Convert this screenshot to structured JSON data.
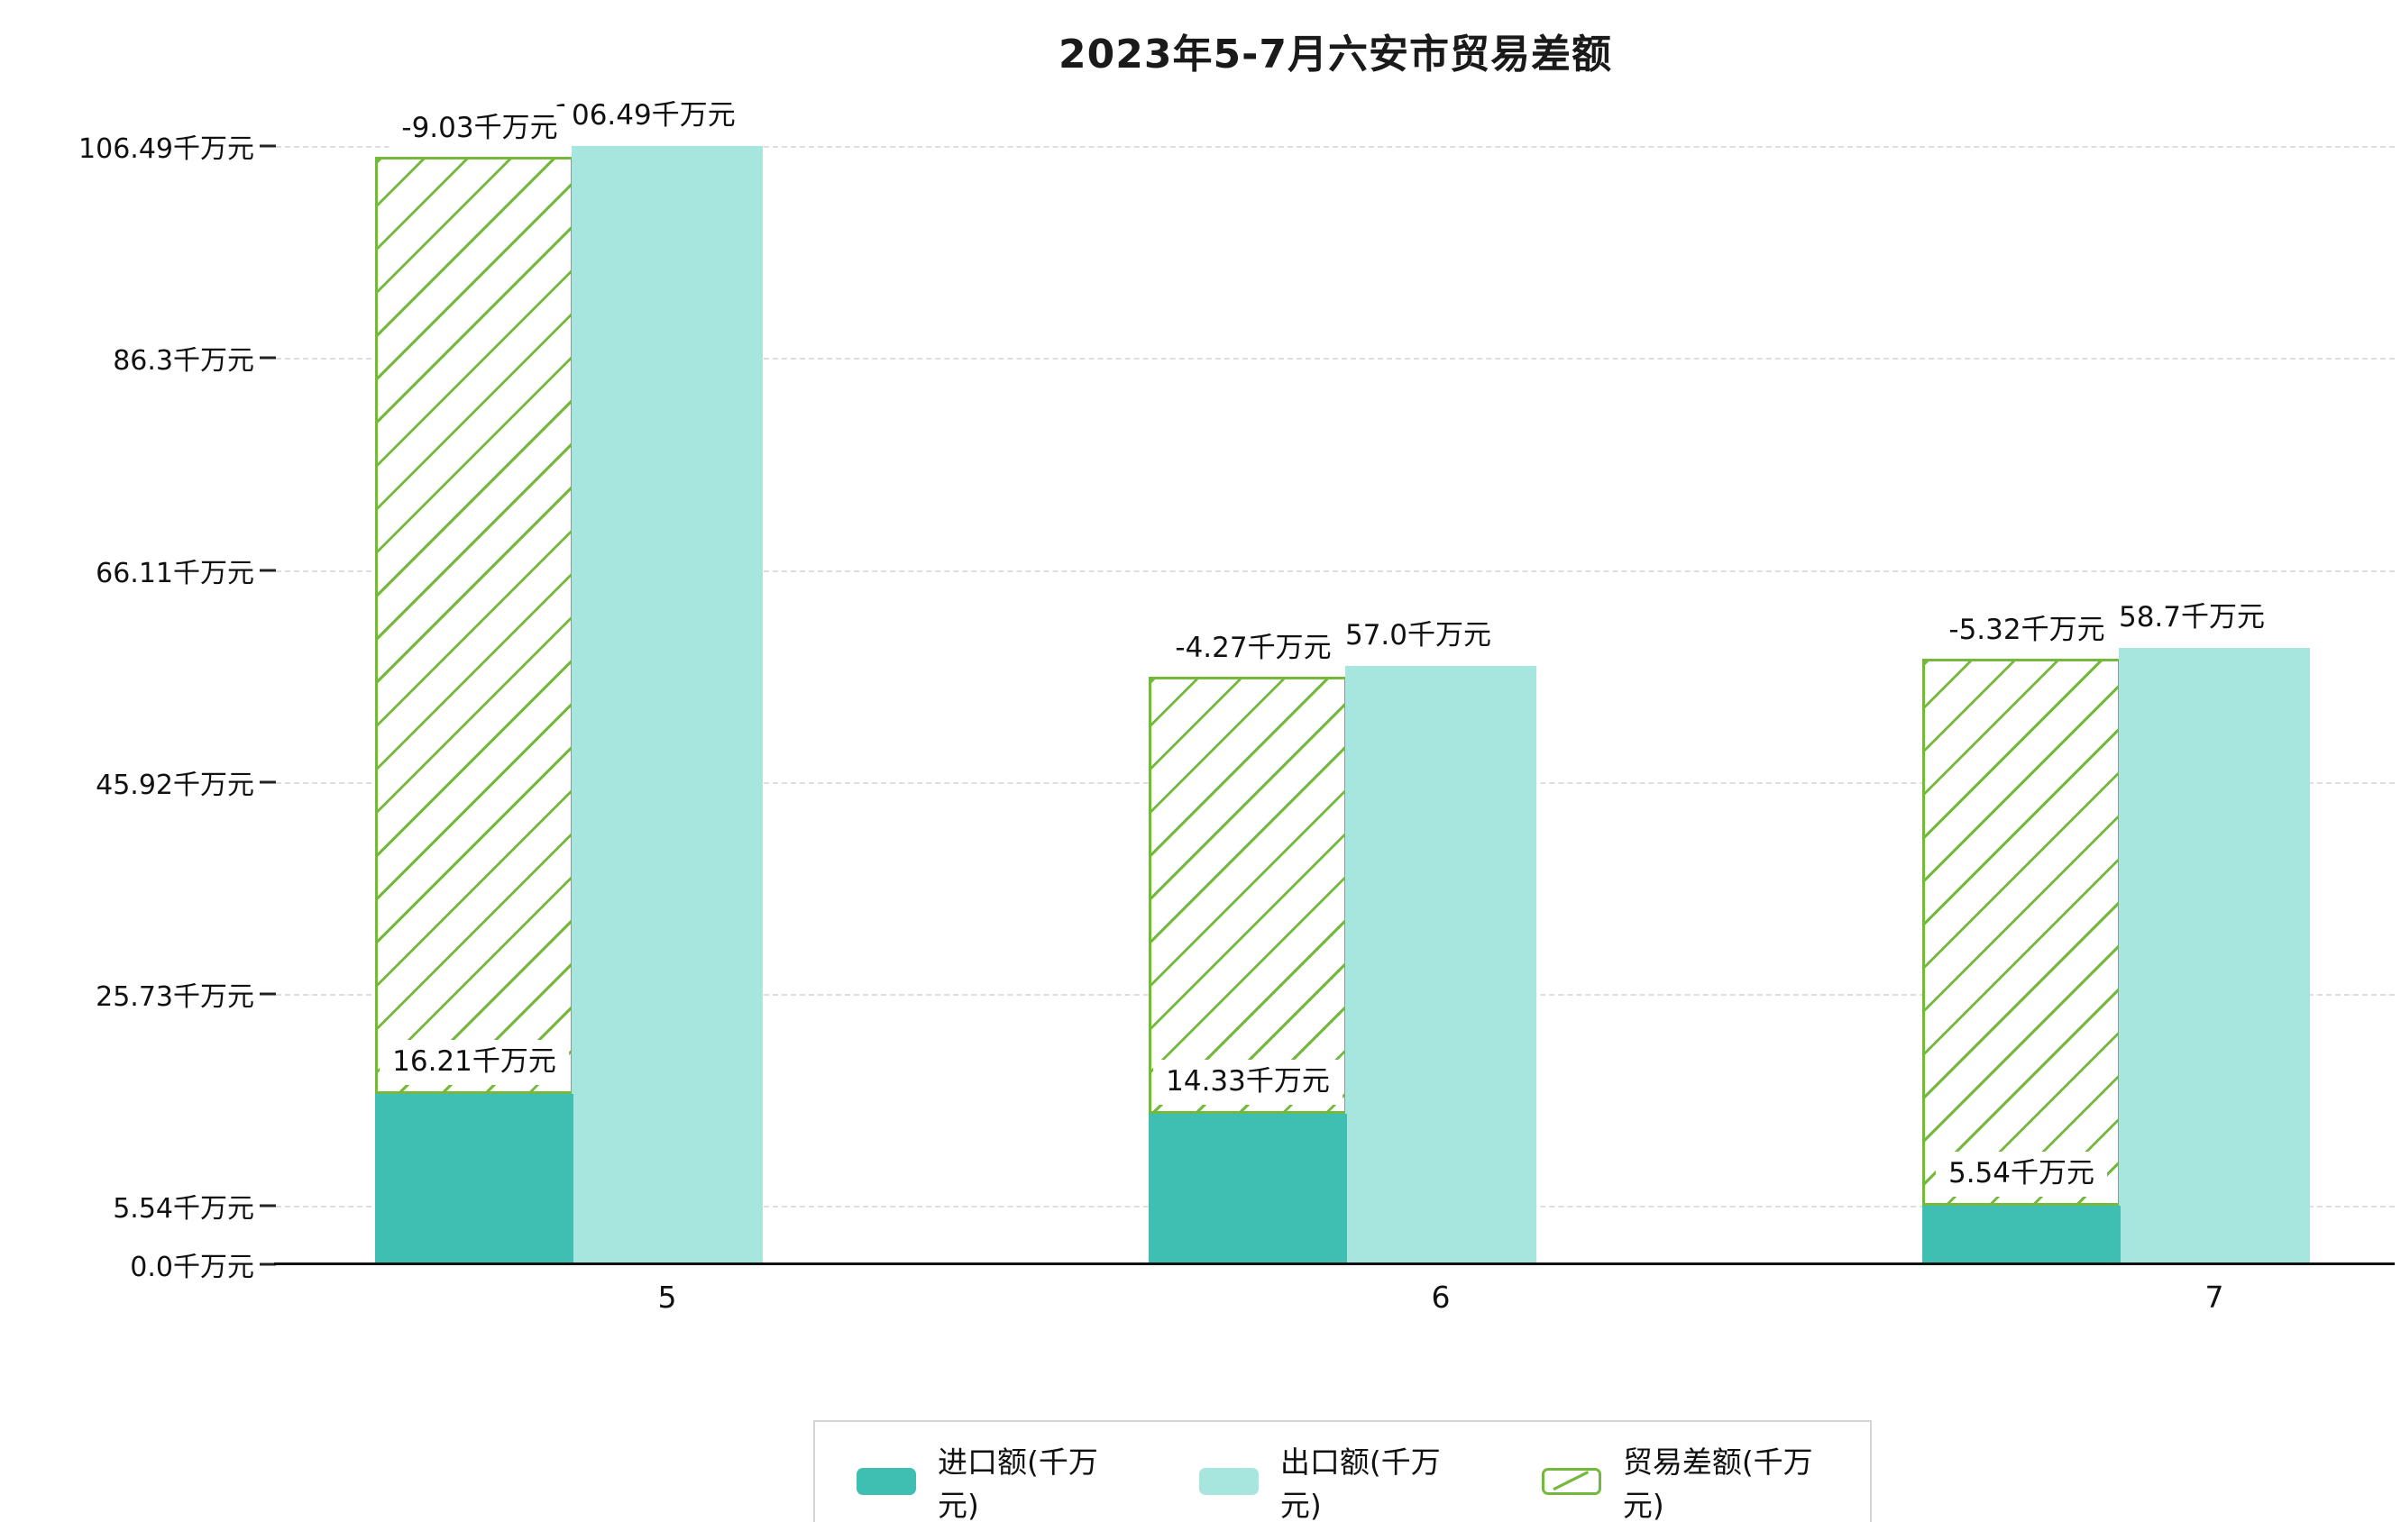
{
  "title": "2023年5-7月六安市贸易差额",
  "colors": {
    "import_bar": "#3fbfb1",
    "export_bar": "#a6e6de",
    "balance": "#74b93e",
    "grid": "#dedede",
    "axis": "#111111",
    "text": "#111111",
    "legend_border": "#d4d4d4"
  },
  "chart_data": {
    "type": "bar",
    "title": "2023年5-7月六安市贸易差额",
    "categories": [
      "5",
      "6",
      "7"
    ],
    "series": [
      {
        "name": "进口额(千万元)",
        "type": "bar",
        "values": [
          16.21,
          14.33,
          5.54
        ]
      },
      {
        "name": "出口额(千万元)",
        "type": "bar",
        "values": [
          106.49,
          57.0,
          58.7
        ]
      },
      {
        "name": "贸易差额(千万元)",
        "type": "bar-hatched-span",
        "values": [
          -9.03,
          -4.27,
          -5.32
        ]
      }
    ],
    "labels": {
      "import": [
        "16.21千万元",
        "14.33千万元",
        "5.54千万元"
      ],
      "export": [
        "106.49千万元",
        "57.0千万元",
        "58.7千万元"
      ],
      "balance": [
        "-9.03千万元",
        "-4.27千万元",
        "-5.32千万元"
      ]
    },
    "yticks": [
      {
        "value": 0.0,
        "label": "0.0千万元"
      },
      {
        "value": 5.54,
        "label": "5.54千万元"
      },
      {
        "value": 25.73,
        "label": "25.73千万元"
      },
      {
        "value": 45.92,
        "label": "45.92千万元"
      },
      {
        "value": 66.11,
        "label": "66.11千万元"
      },
      {
        "value": 86.3,
        "label": "86.3千万元"
      },
      {
        "value": 106.49,
        "label": "106.49千万元"
      }
    ],
    "ylim": [
      0,
      106.49
    ],
    "xlabel": "",
    "ylabel": "",
    "grid": true,
    "legend": [
      "进口额(千万元)",
      "出口额(千万元)",
      "贸易差额(千万元)"
    ],
    "legend_position": "bottom"
  }
}
